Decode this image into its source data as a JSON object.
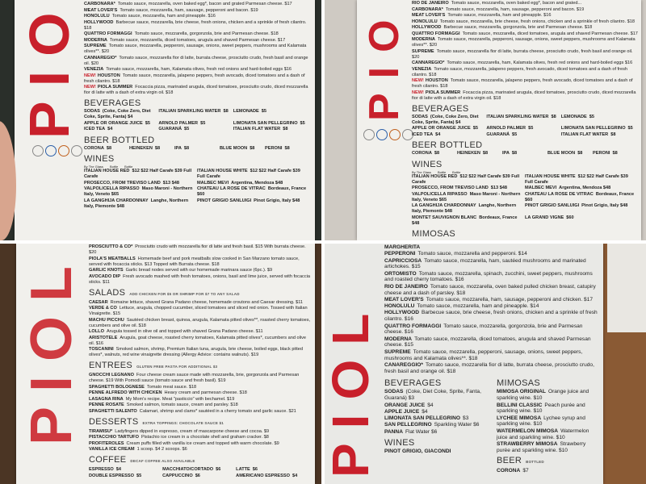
{
  "colors": {
    "brand_red": "#c8202b",
    "paper": "#f1f0ec"
  },
  "panels": [
    {
      "logo": "PIO",
      "sections": [
        {
          "title": "",
          "items": [
            {
              "name": "CARBONARA*",
              "desc": "Tomato sauce, mozzarella, oven baked egg*, bacon and grated Parmesan cheese. $17"
            },
            {
              "name": "MEAT LOVER'S",
              "desc": "Tomato sauce, mozzarella, ham, sausage, pepperoni and bacon. $19"
            },
            {
              "name": "HONOLULU",
              "desc": "Tomato sauce, mozzarella, ham and pineapple. $16"
            },
            {
              "name": "HOLLYWOOD",
              "desc": "Barbecue sauce, mozzarella, brie cheese, fresh onions, chicken and a sprinkle of fresh cilantro. $18"
            },
            {
              "name": "QUATTRO FORMAGGI",
              "desc": "Tomato sauce, mozzarella, gorgonzola, brie and Parmesan cheese. $18"
            },
            {
              "name": "MODERNA",
              "desc": "Tomato sauce, mozzarella, diced tomatoes, arugula and shaved Parmesan cheese. $17"
            },
            {
              "name": "SUPREME",
              "desc": "Tomato sauce, mozzarella, pepperoni, sausage, onions, sweet peppers, mushrooms and Kalamata olives**. $20"
            },
            {
              "name": "CANNAREGIO*",
              "desc": "Tomato sauce, mozzarella fior di latte, burrata cheese, prosciutto crudo, fresh basil and orange oil. $20"
            },
            {
              "name": "VENEZIA",
              "desc": "Tomato sauce, mozzarella, ham, Kalamata olives, fresh red onions and hard-boiled eggs $16"
            },
            {
              "new": "NEW!",
              "name": "HOUSTON",
              "desc": "Tomato sauce, mozzarella, jalapeno peppers, fresh avocado, diced tomatoes and a dash of fresh cilantro. $18"
            },
            {
              "new": "NEW!",
              "name": "PIOLA SUMMER",
              "desc": "Focaccia pizza, marinated arugula, diced tomatoes, prosciutto crudo, diced mozzarella fior di latte with a dash of extra virgin oil. $18"
            }
          ]
        },
        {
          "title": "BEVERAGES",
          "layout": "cols",
          "items": [
            {
              "name": "SODAS",
              "desc": "(Coke, Coke Zero, Diet Coke, Sprite, Fanta) $4"
            },
            {
              "name": "ITALIAN SPARKLING WATER",
              "desc": "$8"
            },
            {
              "name": "LEMONADE",
              "desc": "$5"
            },
            {
              "name": "APPLE OR ORANGE JUICE",
              "desc": "$5"
            },
            {
              "name": "ARNOLD PALMER",
              "desc": "$5"
            },
            {
              "name": "LIMONATA SAN PELLEGRINO",
              "desc": "$5"
            },
            {
              "name": "ICED TEA",
              "desc": "$4"
            },
            {
              "name": "GUARANÁ",
              "desc": "$5"
            },
            {
              "name": "ITALIAN FLAT WATER",
              "desc": "$8"
            }
          ]
        },
        {
          "title": "BEER BOTTLED",
          "layout": "beer",
          "items": [
            {
              "name": "CORONA",
              "desc": "$8"
            },
            {
              "name": "HEINEKEN",
              "desc": "$8"
            },
            {
              "name": "IPA",
              "desc": "$8"
            },
            {
              "name": "BLUE MOON",
              "desc": "$8"
            },
            {
              "name": "PERONI",
              "desc": "$8"
            }
          ]
        },
        {
          "title": "WINES",
          "layout": "wines",
          "header": [
            "By The Glass",
            "Bottle",
            "Bottle"
          ],
          "items": [
            {
              "name": "ITALIAN HOUSE RED",
              "desc": "$12  $22 Half Carafe  $39 Full Carafe"
            },
            {
              "name": "ITALIAN HOUSE WHITE",
              "desc": "$12  $22 Half Carafe  $39 Full Carafe"
            },
            {
              "name": "PROSECCO, FROM TREVISO LAND",
              "desc": "$13  $48"
            },
            {
              "name": "MALBEC MEVI",
              "desc": "Argentina, Mendoza $48"
            },
            {
              "name": "VALPOLICELLA RIPASSO",
              "desc": "Maso Maroni - Northern Italy, Veneto $65"
            },
            {
              "name": "CHATEAU LA ROSE DE VITRAC",
              "desc": "Bordeaux, France $60"
            },
            {
              "name": "LA GANGHIJA CHARDONNAY",
              "desc": "Langhe, Northern Italy, Piemonte $48"
            },
            {
              "name": "PINOT GRIGIO SANLUIGI",
              "desc": "Pinot Grigio, Italy $48"
            }
          ]
        }
      ]
    },
    {
      "logo": "PIO",
      "sections": [
        {
          "title": "",
          "items": [
            {
              "name": "RIO DE JANEIRO",
              "desc": "Tomato sauce, mozzarella, oven baked egg*, bacon and grated..."
            },
            {
              "name": "CARBONARA*",
              "desc": "Tomato sauce, mozzarella, ham, sausage, pepperoni and bacon. $19"
            },
            {
              "name": "MEAT LOVER'S",
              "desc": "Tomato sauce, mozzarella, ham and pineapple. $16"
            },
            {
              "name": "HONOLULU",
              "desc": "Tomato sauce, mozzarella, brie cheese, fresh onions, chicken and a sprinkle of fresh cilantro. $18"
            },
            {
              "name": "HOLLYWOOD",
              "desc": "Barbecue sauce, mozzarella, gorgonzola, brie and Parmesan cheese. $18"
            },
            {
              "name": "QUATTRO FORMAGGI",
              "desc": "Tomato sauce, mozzarella, diced tomatoes, arugula and shaved Parmesan cheese. $17"
            },
            {
              "name": "MODERNA",
              "desc": "Tomato sauce, mozzarella, pepperoni, sausage, onions, sweet peppers, mushrooms and Kalamata olives**. $20"
            },
            {
              "name": "SUPREME",
              "desc": "Tomato sauce, mozzarella fior di latte, burrata cheese, prosciutto crudo, fresh basil and orange oil. $20"
            },
            {
              "name": "CANNAREGIO*",
              "desc": "Tomato sauce, mozzarella, ham, Kalamata olives, fresh red onions and hard-boiled eggs $16"
            },
            {
              "name": "VENEZIA",
              "desc": "Tomato sauce, mozzarella, jalapeno peppers, fresh avocado, diced tomatoes and a dash of fresh cilantro. $18"
            },
            {
              "new": "NEW!",
              "name": "HOUSTON",
              "desc": "Tomato sauce, mozzarella, jalapeno peppers, fresh avocado, diced tomatoes and a dash of fresh cilantro. $18"
            },
            {
              "new": "NEW!",
              "name": "PIOLA SUMMER",
              "desc": "Focaccia pizza, marinated arugula, diced tomatoes, prosciutto crudo, diced mozzarella fior di latte with a dash of extra virgin oil. $18"
            }
          ]
        },
        {
          "title": "BEVERAGES",
          "layout": "cols",
          "items": [
            {
              "name": "SODAS",
              "desc": "(Coke, Coke Zero, Diet Coke, Sprite, Fanta) $4"
            },
            {
              "name": "ITALIAN SPARKLING WATER",
              "desc": "$8"
            },
            {
              "name": "LEMONADE",
              "desc": "$5"
            },
            {
              "name": "APPLE OR ORANGE JUICE",
              "desc": "$5"
            },
            {
              "name": "ARNOLD PALMER",
              "desc": "$5"
            },
            {
              "name": "LIMONATA SAN PELLEGRINO",
              "desc": "$5"
            },
            {
              "name": "ICED TEA",
              "desc": "$4"
            },
            {
              "name": "GUARANÁ",
              "desc": "$5"
            },
            {
              "name": "ITALIAN FLAT WATER",
              "desc": "$8"
            }
          ]
        },
        {
          "title": "BEER BOTTLED",
          "layout": "beer",
          "items": [
            {
              "name": "CORONA",
              "desc": "$8"
            },
            {
              "name": "HEINEKEN",
              "desc": "$8"
            },
            {
              "name": "IPA",
              "desc": "$8"
            },
            {
              "name": "BLUE MOON",
              "desc": "$8"
            },
            {
              "name": "PERONI",
              "desc": "$8"
            }
          ]
        },
        {
          "title": "WINES",
          "layout": "wines",
          "header": [
            "By The Glass",
            "Bottle",
            "Bottle"
          ],
          "items": [
            {
              "name": "ITALIAN HOUSE RED",
              "desc": "$12  $22 Half Carafe  $39 Full Carafe"
            },
            {
              "name": "ITALIAN HOUSE WHITE",
              "desc": "$12  $22 Half Carafe  $39 Full Carafe"
            },
            {
              "name": "PROSECCO, FROM TREVISO LAND",
              "desc": "$13  $48"
            },
            {
              "name": "MALBEC MEVI",
              "desc": "Argentina, Mendoza $48"
            },
            {
              "name": "VALPOLICELLA RIPASSO",
              "desc": "Maso Maroni - Northern Italy, Veneto $65"
            },
            {
              "name": "CHATEAU LA ROSE DE VITRAC",
              "desc": "Bordeaux, France $60"
            },
            {
              "name": "LA GANGHIJA CHARDONNAY",
              "desc": "Langhe, Northern Italy, Piemonte $48"
            },
            {
              "name": "PINOT GRIGIO SANLUIGI",
              "desc": "Pinot Grigio, Italy $48"
            },
            {
              "name": "MONTET SAUVIGNON BLANC",
              "desc": "Bordeaux, France $48"
            },
            {
              "name": "LA GRAND VIGNE",
              "desc": "$60"
            }
          ]
        },
        {
          "title": "MIMOSAS",
          "items": []
        }
      ]
    },
    {
      "logo": "PIOL",
      "sections": [
        {
          "title": "",
          "items": [
            {
              "name": "PROSCIUTTO & CO*",
              "desc": "Prosciutto crudo with mozzarella fior di latte and fresh basil. $15 With burrata cheese. $20"
            },
            {
              "name": "PIOLA'S MEATBALLS",
              "desc": "Homemade beef and pork meatballs slow cooked in San Marzano tomato sauce, served with focaccia sticks. $13 Topped with Burrata cheese. $18"
            },
            {
              "name": "GARLIC KNOTS",
              "desc": "Garlic bread nodes served with our homemade marinara sauce (6pc.). $9"
            },
            {
              "name": "AVOCADO DIP",
              "desc": "Fresh avocado mashed with fresh tomatoes, onions, basil and lime juice, served with focaccia sticks. $11"
            }
          ]
        },
        {
          "title": "SALADS",
          "note": "ADD CHICKEN FOR $5 OR SHRIMP FOR $7 TO ANY SALAD",
          "items": [
            {
              "name": "CAESAR",
              "desc": "Romaine lettuce, shaved Grana Padano cheese, homemade croutons and Caesar dressing. $11"
            },
            {
              "name": "VERDE & CO",
              "desc": "Lettuce, arugula, chopped cucumber, sliced tomatoes and sliced red onion. Tossed with Italian Vinaigrette. $15"
            },
            {
              "name": "MACHU PICCHU",
              "desc": "Sautéed chicken breast, quinoa, arugula, Kalamata pitted olives**, roasted cherry tomatoes, cucumbers and olive oil. $18"
            },
            {
              "name": "LOLLO",
              "desc": "Arugula tossed in olive oil and topped with shaved Grana Padano cheese. $11"
            },
            {
              "name": "ARISTOTELE",
              "desc": "Arugula, goat cheese, roasted cherry tomatoes, Kalamata pitted olives*, cucumbers and olive oil. $16"
            },
            {
              "name": "TOSCANINI",
              "desc": "Smoked salmon, shrimp, Premium Italian tuna, arugula, brie cheese, boiled eggs, black pitted olives*, walnuts, red wine vinaigrette dressing (Allergy Advice: contains walnuts). $19"
            }
          ]
        },
        {
          "title": "ENTREES",
          "note": "GLUTEN FREE PASTA FOR ADDITIONAL $3",
          "items": [
            {
              "name": "GNOCCHI LEGNANO",
              "desc": "Four cheese cream sauce made with mozzarella, brie, gorgonzola and Parmesan cheese. $19 With Pomodi sauce (tomato sauce and fresh basil). $19"
            },
            {
              "name": "SPAGHETTI BOLOGNESE",
              "desc": "Tomato meat sauce. $18"
            },
            {
              "name": "PENNE ALFREDO WITH CHICKEN",
              "desc": "Heavy cream and parmesan cheese. $18"
            },
            {
              "name": "LASAGNA RINA",
              "desc": "My Mom's recipe. Meat \"pasticcio\" with bechamel. $19"
            },
            {
              "name": "PENNE ROSATE",
              "desc": "Smoked salmon, tomato sauce, cream and parsley. $18"
            },
            {
              "name": "SPAGHETTI SALENTO",
              "desc": "Calamari, shrimp and clams* sautéed in a cherry tomato and garlic sauce. $21"
            }
          ]
        },
        {
          "title": "DESSERTS",
          "note": "EXTRA TOPPINGS: CHOCOLATE SAUCE $1",
          "items": [
            {
              "name": "TIRAMISU*",
              "desc": "Ladyfingers dipped in espresso, cream of mascarpone cheese and cocoa. $9"
            },
            {
              "name": "PISTACCHIO TARTUFO",
              "desc": "Pistachio ice cream in a chocolate shell and graham cracker. $8"
            },
            {
              "name": "PROFITEROLES",
              "desc": "Cream puffs filled with vanilla ice cream and topped with warm chocolate. $9"
            },
            {
              "name": "VANILLA ICE CREAM",
              "desc": "1 scoop. $4   2 scoops. $6"
            }
          ]
        },
        {
          "title": "COFFEE",
          "note": "DECAF COFFEE ALSO AVAILABLE",
          "layout": "cols",
          "items": [
            {
              "name": "ESPRESSO",
              "desc": "$4"
            },
            {
              "name": "MACCHIATO/CORTADO",
              "desc": "$6"
            },
            {
              "name": "LATTE",
              "desc": "$6"
            },
            {
              "name": "DOUBLE ESPRESSO",
              "desc": "$5"
            },
            {
              "name": "CAPPUCCINO",
              "desc": "$6"
            },
            {
              "name": "AMERICANO ESPRESSO",
              "desc": "$4"
            }
          ]
        }
      ]
    },
    {
      "logo": "PIOL",
      "sections": [
        {
          "title": "",
          "items": [
            {
              "name": "MARGHERITA",
              "desc": ""
            },
            {
              "name": "PEPPERONI",
              "desc": "Tomato sauce, mozzarella and pepperoni. $14"
            },
            {
              "name": "CAPRICCIOSA",
              "desc": "Tomato sauce, mozzarella, ham, sautéed mushrooms and marinated artichokes. $15"
            },
            {
              "name": "ORTOMISTO",
              "desc": "Tomato sauce, mozzarella, spinach, zucchini, sweet peppers, mushrooms and roasted cherry tomatoes. $16"
            },
            {
              "name": "RIO DE JANEIRO",
              "desc": "Tomato sauce, mozzarella, oven baked pulled chicken breast, catupiry cheese and a dash of parsley. $18"
            },
            {
              "name": "MEAT LOVER'S",
              "desc": "Tomato sauce, mozzarella, ham, sausage, pepperoni and chicken. $17"
            },
            {
              "name": "HONOLULU",
              "desc": "Tomato sauce, mozzarella, ham and pineapple. $14"
            },
            {
              "name": "HOLLYWOOD",
              "desc": "Barbecue sauce, brie cheese, fresh onions, chicken and a sprinkle of fresh cilantro. $16"
            },
            {
              "name": "QUATTRO FORMAGGI",
              "desc": "Tomato sauce, mozzarella, gorgonzola, brie and Parmesan cheese. $16"
            },
            {
              "name": "MODERNA",
              "desc": "Tomato sauce, mozzarella, diced tomatoes, arugula and shaved Parmesan cheese. $15"
            },
            {
              "name": "SUPREME",
              "desc": "Tomato sauce, mozzarella, pepperoni, sausage, onions, sweet peppers, mushrooms and Kalamata olives**. $18"
            },
            {
              "name": "CANAREGGIO*",
              "desc": "Tomato sauce, mozzarella fior di latte, burrata cheese, prosciutto crudo, fresh basil and orange oil. $18"
            }
          ]
        }
      ],
      "left": [
        {
          "title": "BEVERAGES",
          "items": [
            {
              "name": "SODAS",
              "desc": "(Coke, Diet Coke, Sprite, Fanta, Guaraná) $3"
            },
            {
              "name": "ORANGE JUICE",
              "desc": "$4"
            },
            {
              "name": "APPLE JUICE",
              "desc": "$4"
            },
            {
              "name": "LIMONATA SAN PELLEGRINO",
              "desc": "$3"
            },
            {
              "name": "SAN PELLEGRINO",
              "desc": "Sparkling Water $6"
            },
            {
              "name": "PANNA",
              "desc": "Flat Water $6"
            }
          ]
        },
        {
          "title": "WINES",
          "items": [
            {
              "name": "PINOT GRIGIO, GIACONDI",
              "desc": ""
            }
          ]
        }
      ],
      "right": [
        {
          "title": "MIMOSAS",
          "items": [
            {
              "name": "MIMOSA ORIGINAL",
              "desc": "Orange juice and sparkling wine. $10"
            },
            {
              "name": "BELLINI CLASSIC",
              "desc": "Peach purée and sparkling wine. $10"
            },
            {
              "name": "LYCHEE MIMOSA",
              "desc": "Lychee syrup and sparkling wine. $10"
            },
            {
              "name": "WATERMELON MIMOSA",
              "desc": "Watermelon juice and sparkling wine. $10"
            },
            {
              "name": "STRAWBERRY MIMOSA",
              "desc": "Strawberry purée and sparkling wine. $10"
            }
          ]
        },
        {
          "title": "BEER",
          "note": "BOTTLED",
          "items": [
            {
              "name": "CORONA",
              "desc": "$7"
            }
          ]
        }
      ]
    }
  ]
}
